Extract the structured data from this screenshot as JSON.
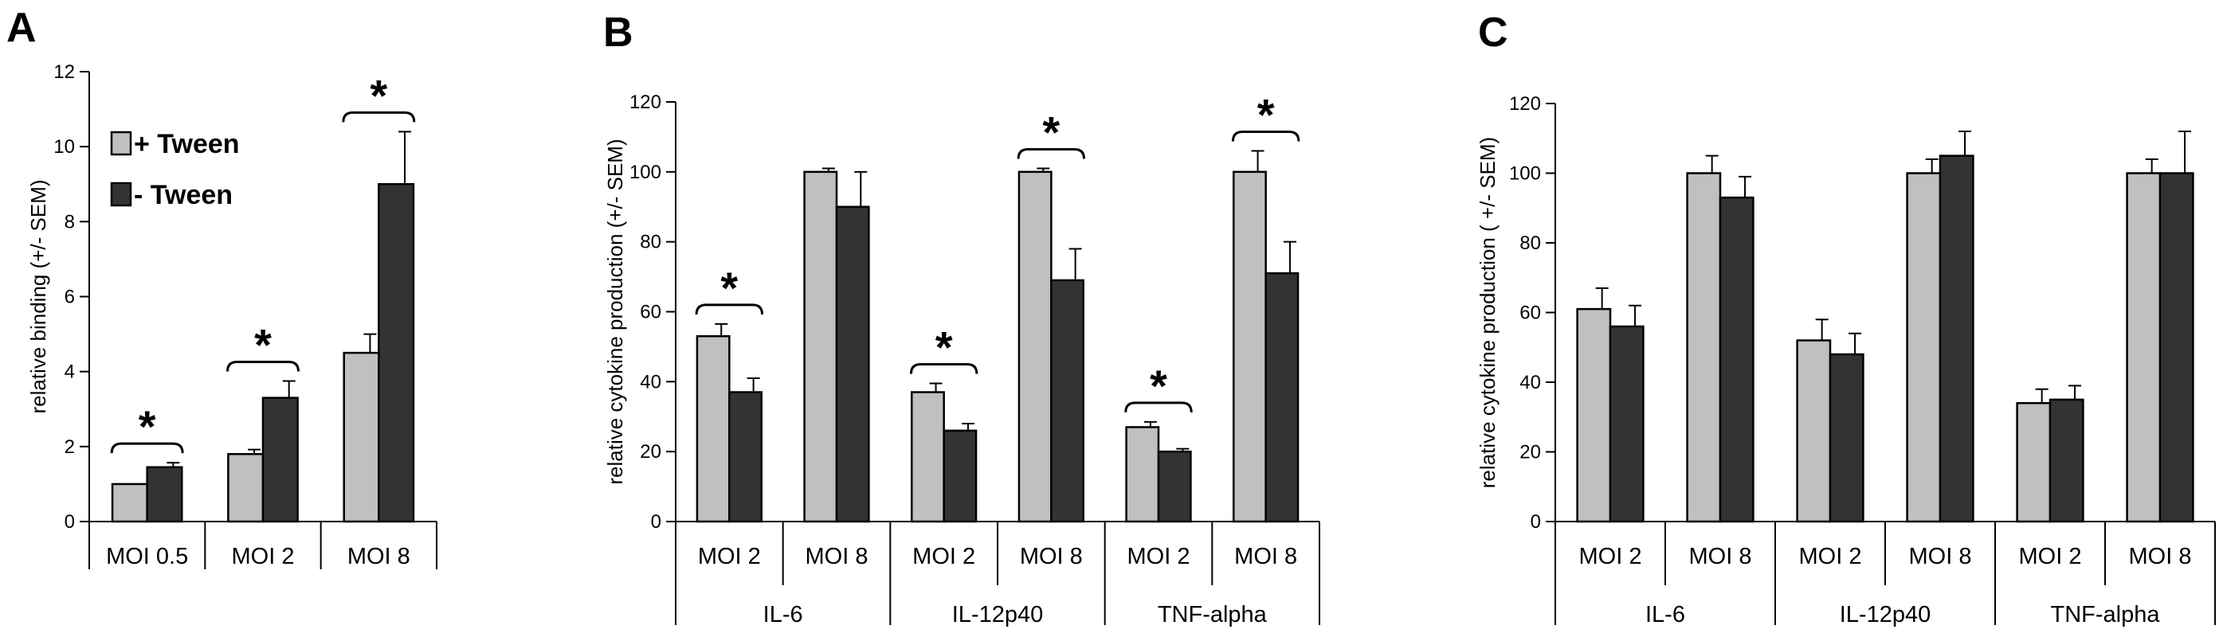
{
  "colors": {
    "tween_plus": "#c0c0c0",
    "tween_minus": "#333333",
    "axis": "#000000"
  },
  "legend": [
    {
      "label": "+ Tween",
      "color": "#c0c0c0"
    },
    {
      "label": "- Tween",
      "color": "#333333"
    }
  ],
  "chart_data": [
    {
      "panel": "A",
      "type": "bar",
      "ylabel": "relative binding (+/- SEM)",
      "ylim": [
        0,
        12
      ],
      "yticks": [
        0,
        2,
        4,
        6,
        8,
        10,
        12
      ],
      "categories": [
        "MOI 0.5",
        "MOI 2",
        "MOI 8"
      ],
      "groups": [],
      "series": [
        {
          "name": "+ Tween",
          "values": [
            1.0,
            1.8,
            4.5
          ],
          "errors": [
            0,
            0.12,
            0.5
          ]
        },
        {
          "name": "- Tween",
          "values": [
            1.45,
            3.3,
            9.0
          ],
          "errors": [
            0.12,
            0.45,
            1.4
          ]
        }
      ],
      "significance": [
        "*",
        "*",
        "*"
      ]
    },
    {
      "panel": "B",
      "type": "bar",
      "ylabel": "relative cytokine production (+/- SEM)",
      "ylim": [
        0,
        120
      ],
      "yticks": [
        0,
        20,
        40,
        60,
        80,
        100,
        120
      ],
      "categories": [
        "MOI 2",
        "MOI 8",
        "MOI 2",
        "MOI 8",
        "MOI 2",
        "MOI 8"
      ],
      "groups": [
        "IL-6",
        "IL-12p40",
        "TNF-alpha"
      ],
      "series": [
        {
          "name": "+ Tween",
          "values": [
            53,
            100,
            37,
            100,
            27,
            100
          ],
          "errors": [
            3.5,
            1,
            2.5,
            1,
            1.5,
            6
          ]
        },
        {
          "name": "- Tween",
          "values": [
            37,
            90,
            26,
            69,
            20,
            71
          ],
          "errors": [
            4,
            10,
            2,
            9,
            0.8,
            9
          ]
        }
      ],
      "significance": [
        "*",
        "",
        "*",
        "*",
        "*",
        "*"
      ]
    },
    {
      "panel": "C",
      "type": "bar",
      "ylabel": "relative cytokine production ( +/- SEM)",
      "ylim": [
        0,
        120
      ],
      "yticks": [
        0,
        20,
        40,
        60,
        80,
        100,
        120
      ],
      "categories": [
        "MOI 2",
        "MOI 8",
        "MOI 2",
        "MOI 8",
        "MOI 2",
        "MOI 8"
      ],
      "groups": [
        "IL-6",
        "IL-12p40",
        "TNF-alpha"
      ],
      "series": [
        {
          "name": "+ Tween",
          "values": [
            61,
            100,
            52,
            100,
            34,
            100
          ],
          "errors": [
            6,
            5,
            6,
            4,
            4,
            4
          ]
        },
        {
          "name": "- Tween",
          "values": [
            56,
            93,
            48,
            105,
            35,
            100
          ],
          "errors": [
            6,
            6,
            6,
            7,
            4,
            12
          ]
        }
      ],
      "significance": [
        "",
        "",
        "",
        "",
        "",
        ""
      ]
    }
  ]
}
